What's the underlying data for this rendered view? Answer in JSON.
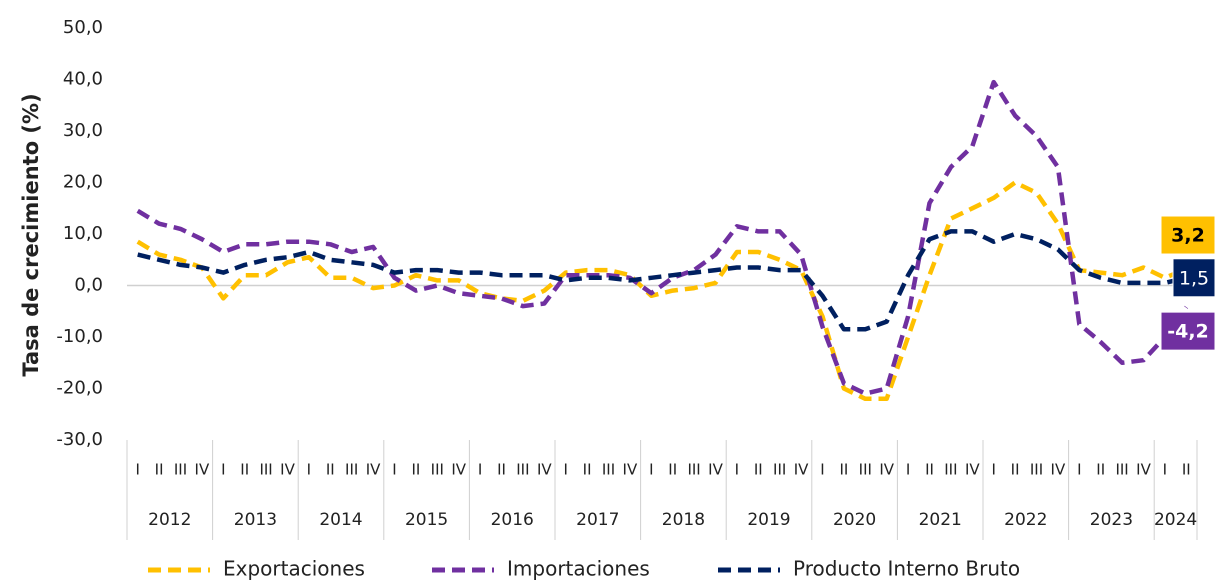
{
  "chart_data": {
    "type": "line",
    "y_axis_label": "Tasa de crecimiento (%)",
    "categories": [
      "I",
      "II",
      "III",
      "IV",
      "I",
      "II",
      "III",
      "IV",
      "I",
      "II",
      "III",
      "IV",
      "I",
      "II",
      "III",
      "IV",
      "I",
      "II",
      "III",
      "IV",
      "I",
      "II",
      "III",
      "IV",
      "I",
      "II",
      "III",
      "IV",
      "I",
      "II",
      "III",
      "IV",
      "I",
      "II",
      "III",
      "IV",
      "I",
      "II",
      "III",
      "IV",
      "I",
      "II",
      "III",
      "IV",
      "I",
      "II",
      "III",
      "IV",
      "I",
      "II"
    ],
    "groups": [
      "2012",
      "2013",
      "2014",
      "2015",
      "2016",
      "2017",
      "2018",
      "2019",
      "2020",
      "2021",
      "2022",
      "2023",
      "2024"
    ],
    "ylim": [
      -30,
      50
    ],
    "yticks": [
      {
        "value": -30,
        "label": "-30,0"
      },
      {
        "value": -20,
        "label": "-20,0"
      },
      {
        "value": -10,
        "label": "-10,0"
      },
      {
        "value": 0,
        "label": "0,0"
      },
      {
        "value": 10,
        "label": "10,0"
      },
      {
        "value": 20,
        "label": "20,0"
      },
      {
        "value": 30,
        "label": "30,0"
      },
      {
        "value": 40,
        "label": "40,0"
      },
      {
        "value": 50,
        "label": "50,0"
      }
    ],
    "grid": false,
    "legend": "bottom",
    "series": [
      {
        "name": "Exportaciones",
        "color": "#FFC000",
        "values": [
          8.5,
          6,
          5,
          3.5,
          -2.5,
          2,
          2,
          4.5,
          5.5,
          1.5,
          1.5,
          -0.5,
          0,
          2,
          1,
          1,
          -1.5,
          -2.5,
          -3,
          -1,
          2.5,
          3,
          3,
          2,
          -2,
          -1,
          -0.5,
          0.5,
          6.5,
          6.5,
          5,
          3,
          -6,
          -20,
          -22,
          -22,
          -10,
          2,
          13,
          15,
          17,
          20,
          18,
          12,
          3,
          2.5,
          2,
          3.5,
          1.5,
          3.2
        ],
        "value_labels": [
          null,
          null,
          null,
          null,
          null,
          null,
          null,
          null,
          null,
          null,
          null,
          null,
          null,
          null,
          null,
          null,
          null,
          null,
          null,
          null,
          null,
          null,
          null,
          null,
          null,
          null,
          null,
          null,
          null,
          null,
          null,
          null,
          null,
          null,
          null,
          null,
          null,
          null,
          null,
          null,
          null,
          null,
          null,
          null,
          null,
          null,
          null,
          null,
          null,
          "3,2"
        ]
      },
      {
        "name": "Importaciones",
        "color": "#7030A0",
        "values": [
          14.5,
          12,
          11,
          9,
          6.5,
          8,
          8,
          8.5,
          8.5,
          8,
          6.5,
          7.5,
          1.5,
          -1,
          0,
          -1.5,
          -2,
          -2.5,
          -4,
          -3.5,
          2,
          2,
          2,
          1.5,
          -1.5,
          1.5,
          3,
          6,
          11.5,
          10.5,
          10.5,
          6,
          -8,
          -19,
          -21,
          -20,
          -6,
          16,
          23,
          27,
          39.5,
          33,
          29,
          23,
          -7.5,
          -11,
          -15,
          -14.5,
          -10,
          -4.2
        ],
        "value_labels": [
          null,
          null,
          null,
          null,
          null,
          null,
          null,
          null,
          null,
          null,
          null,
          null,
          null,
          null,
          null,
          null,
          null,
          null,
          null,
          null,
          null,
          null,
          null,
          null,
          null,
          null,
          null,
          null,
          null,
          null,
          null,
          null,
          null,
          null,
          null,
          null,
          null,
          null,
          null,
          null,
          null,
          null,
          null,
          null,
          null,
          null,
          null,
          null,
          null,
          "-4,2"
        ]
      },
      {
        "name": "Producto Interno Bruto",
        "color": "#002060",
        "values": [
          6,
          5,
          4,
          3.5,
          2.5,
          4,
          5,
          5.5,
          6.5,
          5,
          4.5,
          4,
          2.5,
          3,
          3,
          2.5,
          2.5,
          2,
          2,
          2,
          1,
          1.5,
          1.5,
          1,
          1.5,
          2,
          2.5,
          3,
          3.5,
          3.5,
          3,
          3,
          -2,
          -8.5,
          -8.5,
          -7,
          2,
          9,
          10.5,
          10.5,
          8.5,
          10,
          9,
          7,
          3,
          1.5,
          0.5,
          0.5,
          0.5,
          1.5
        ],
        "value_labels": [
          null,
          null,
          null,
          null,
          null,
          null,
          null,
          null,
          null,
          null,
          null,
          null,
          null,
          null,
          null,
          null,
          null,
          null,
          null,
          null,
          null,
          null,
          null,
          null,
          null,
          null,
          null,
          null,
          null,
          null,
          null,
          null,
          null,
          null,
          null,
          null,
          null,
          null,
          null,
          null,
          null,
          null,
          null,
          null,
          null,
          null,
          null,
          null,
          null,
          "1,5"
        ]
      }
    ]
  }
}
